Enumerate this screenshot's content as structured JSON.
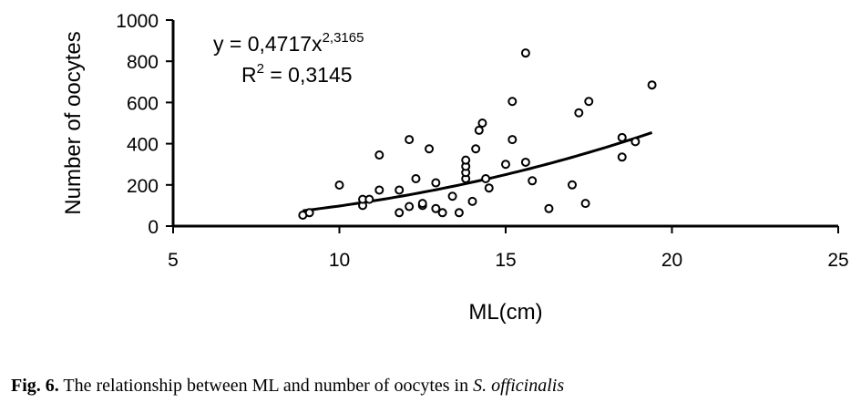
{
  "chart_data": {
    "type": "scatter",
    "title": "",
    "xlabel": "ML(cm)",
    "ylabel": "Number of oocytes",
    "xlim": [
      5,
      25
    ],
    "ylim": [
      0,
      1000
    ],
    "xticks": [
      5,
      10,
      15,
      20,
      25
    ],
    "yticks": [
      0,
      200,
      400,
      600,
      800,
      1000
    ],
    "grid": false,
    "points": [
      [
        8.9,
        53
      ],
      [
        9.1,
        65
      ],
      [
        10.0,
        199
      ],
      [
        10.7,
        100
      ],
      [
        10.7,
        130
      ],
      [
        10.9,
        130
      ],
      [
        11.2,
        345
      ],
      [
        11.2,
        175
      ],
      [
        11.8,
        65
      ],
      [
        11.8,
        175
      ],
      [
        12.1,
        420
      ],
      [
        12.1,
        95
      ],
      [
        12.3,
        230
      ],
      [
        12.5,
        100
      ],
      [
        12.5,
        110
      ],
      [
        12.7,
        375
      ],
      [
        12.9,
        210
      ],
      [
        12.9,
        85
      ],
      [
        13.1,
        65
      ],
      [
        13.4,
        145
      ],
      [
        13.6,
        65
      ],
      [
        13.8,
        230
      ],
      [
        13.8,
        260
      ],
      [
        13.8,
        290
      ],
      [
        13.8,
        320
      ],
      [
        14.0,
        120
      ],
      [
        14.1,
        375
      ],
      [
        14.2,
        465
      ],
      [
        14.3,
        500
      ],
      [
        14.4,
        230
      ],
      [
        14.5,
        185
      ],
      [
        15.0,
        300
      ],
      [
        15.2,
        420
      ],
      [
        15.2,
        605
      ],
      [
        15.6,
        840
      ],
      [
        15.6,
        310
      ],
      [
        15.8,
        220
      ],
      [
        16.3,
        85
      ],
      [
        17.0,
        200
      ],
      [
        17.2,
        550
      ],
      [
        17.4,
        110
      ],
      [
        17.5,
        605
      ],
      [
        18.5,
        430
      ],
      [
        18.5,
        335
      ],
      [
        18.9,
        410
      ],
      [
        19.4,
        685
      ]
    ],
    "trendline": {
      "type": "power",
      "a": 0.4717,
      "b": 2.3165,
      "xrange": [
        8.9,
        19.4
      ]
    },
    "annotations": {
      "equation_prefix": "y = 0,4717x",
      "equation_exponent": "2,3165",
      "r2_prefix": "R",
      "r2_exponent": "2",
      "r2_value": " = 0,3145"
    }
  },
  "caption": {
    "label": "Fig. 6.",
    "text": " The relationship between ML and number of oocytes in ",
    "species": "S. officinalis"
  }
}
